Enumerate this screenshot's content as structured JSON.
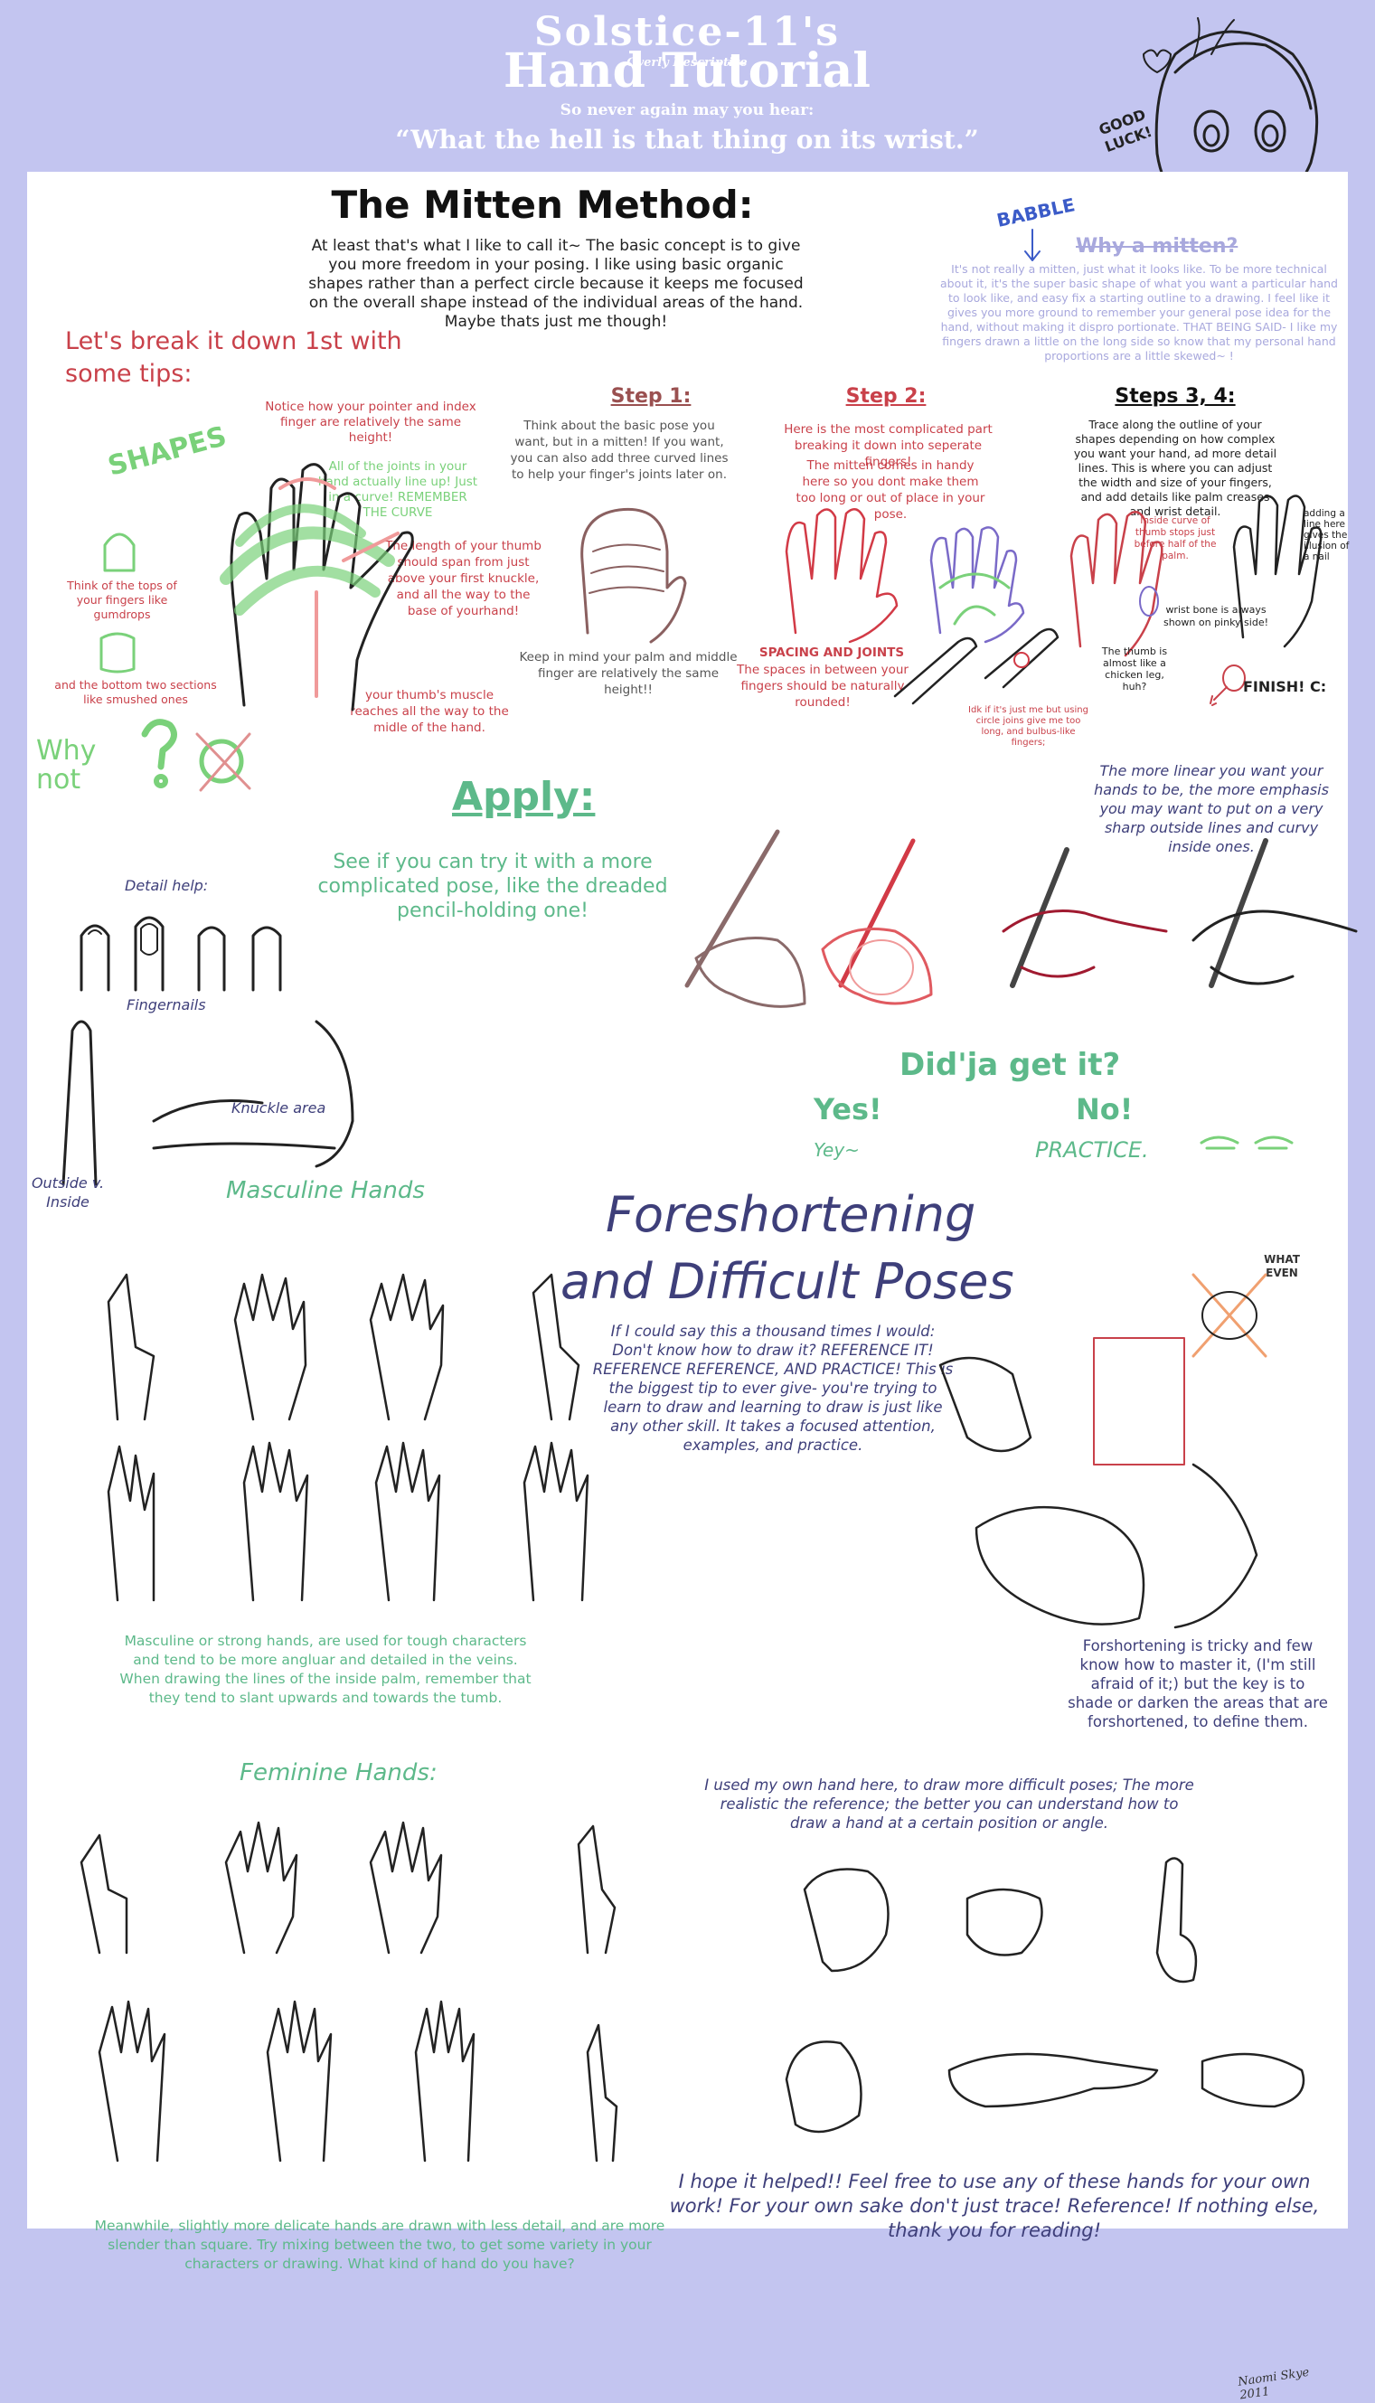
{
  "header": {
    "author": "Solstice-11's",
    "subtitle_small": "Overly Descriptive",
    "title": "Hand Tutorial",
    "tagline": "So never again may you hear:",
    "quote": "“What the hell is that thing on its wrist.”",
    "good_luck": "GOOD LUCK!"
  },
  "mitten": {
    "title": "The Mitten Method:",
    "intro": "At least that's what I like to call it~ The basic concept is to give you more freedom in your posing. I like using basic organic shapes rather than a perfect circle because it keeps me focused on the overall  shape instead of the individual areas of the hand. Maybe thats just me though!",
    "babble": "BABBLE",
    "why_heading": "Why a mitten?",
    "why_text": "It's not really a mitten, just what it looks like. To be more technical about it, it's the super basic shape of what you want a particular hand to look like, and easy fix a starting outline to a drawing. I feel like it gives you more ground to remember your general pose idea for the hand, without making it dispro portionate. THAT BEING SAID- I like my fingers drawn a little on the long side so know that my personal hand proportions are a little skewed~ !"
  },
  "tips": {
    "heading": "Let's break it down 1st with some tips:",
    "shapes": "SHAPES",
    "pointer": "Notice how your pointer and index finger are relatively the same height!",
    "joints": "All of the joints in your hand actually line up! Just in a curve! REMEMBER THE CURVE",
    "thumb_length": "The length of your thumb should span from just above your first knuckle, and all the way to the base of yourhand!",
    "gumdrops": "Think of the tops of your fingers like gumdrops",
    "smushed": "and the bottom two sections like smushed ones",
    "thumb_muscle": "your thumb's muscle reaches  all the way to the midle of the hand.",
    "why_not": "Why not"
  },
  "steps": {
    "step1_title": "Step 1:",
    "step1_text": "Think about the basic pose you want, but in a mitten! If you want, you can also add three curved lines to help your finger's joints later on.",
    "step1_note": "Keep in mind your palm and middle finger are relatively the same height!!",
    "step2_title": "Step 2:",
    "step2_text1": "Here is the most complicated part breaking it down into seperate fingers!",
    "step2_text2": "The mitten comes in handy here so you dont make them too long or out of place in your pose.",
    "spacing_title": "SPACING AND JOINTS",
    "spacing_text": "The spaces in between your fingers should be naturally rounded!",
    "idk": "Idk if it's just me but using circle joins give me too long, and bulbus-like fingers;",
    "steps34_title": "Steps 3, 4:",
    "steps34_text": "Trace along the outline of your shapes depending on how complex you want your hand, ad more detail lines. This is where you can adjust the width and size of your fingers, and add details like palm creases and wrist detail.",
    "inside_curve": "Inside curve of thumb stops just before half of the palm.",
    "nail_line": "adding a line here gives the illusion of a nail",
    "wrist_bone": "wrist bone is always shown on pinky side!",
    "chicken": "The thumb is almost like a chicken leg, huh?",
    "finish": "FINISH! C:"
  },
  "apply": {
    "title": "Apply:",
    "text": "See if you can try it with a more complicated pose, like the dreaded pencil-holding one!",
    "linear": "The more linear you want your hands to be, the more emphasis you may want to put on a very sharp outside lines and curvy inside ones.",
    "didja": "Did'ja get it?",
    "yes": "Yes!",
    "no": "No!",
    "yey": "Yey~",
    "practice": "PRACTICE."
  },
  "details": {
    "detail_help": "Detail help:",
    "fingernails": "Fingernails",
    "knuckle": "Knuckle area",
    "outside_inside": "Outside v. Inside"
  },
  "masculine": {
    "title": "Masculine Hands",
    "text": "Masculine or strong hands, are used for tough characters and tend to be more angluar and detailed in the veins. When drawing the lines of the inside palm, remember that they tend to slant upwards and towards the tumb."
  },
  "foreshortening": {
    "title_line1": "Foreshortening",
    "title_line2": "and Difficult Poses",
    "text": "If I could say this a thousand times I would: Don't know how to draw it? REFERENCE IT! REFERENCE REFERENCE, AND PRACTICE! This is the biggest tip to ever give- you're  trying to learn to draw and learning to draw is just like any other skill. It takes a focused attention, examples, and practice.",
    "what_even": "WHAT EVEN",
    "tricky": "Forshortening is tricky and few know how to  master it, (I'm still afraid of it;) but the key is to shade or darken the areas that are forshortened, to define them."
  },
  "feminine": {
    "title": "Feminine Hands:",
    "text": "Meanwhile, slightly more delicate hands are drawn with less detail, and are more slender than square. Try mixing between the two, to get some variety in your characters or drawing. What kind of hand do you have?"
  },
  "difficult": {
    "text": "I used my own hand here, to draw more difficult poses; The more realistic the reference; the better you can understand how to draw a hand at a certain position or angle."
  },
  "closing": {
    "text": "I hope it helped!! Feel free to use any of these hands for your own work! For your own sake don't just trace!  Reference! If nothing else, thank you for reading!",
    "signature": "Naomi Skye 2011"
  }
}
